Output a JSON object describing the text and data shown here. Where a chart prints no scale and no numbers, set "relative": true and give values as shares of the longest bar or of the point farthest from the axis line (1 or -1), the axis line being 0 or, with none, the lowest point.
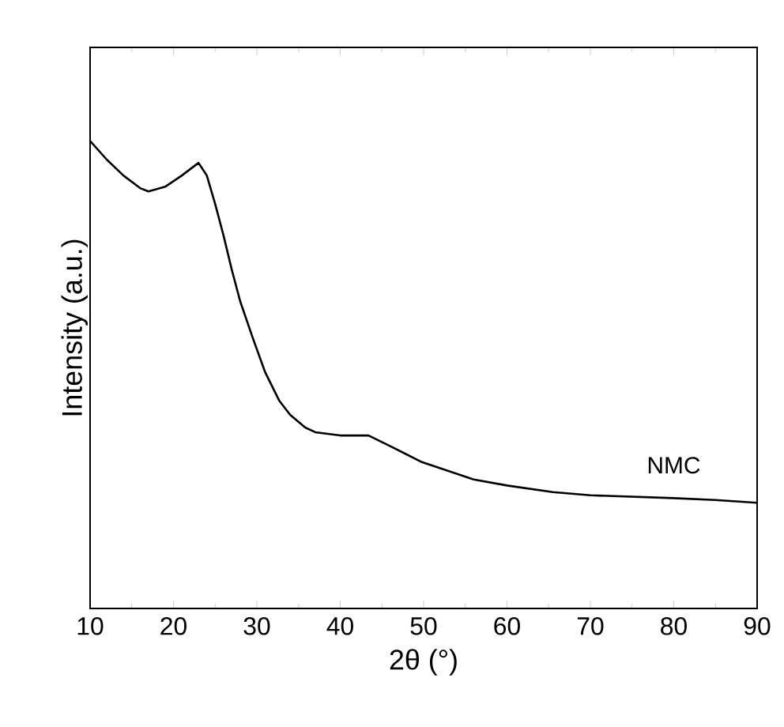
{
  "chart_data": {
    "type": "line",
    "relative": true,
    "xlabel": "2θ (°)",
    "ylabel": "Intensity (a.u.)",
    "xlim": [
      10,
      90
    ],
    "xticks": [
      10,
      20,
      30,
      40,
      50,
      60,
      70,
      80,
      90
    ],
    "marker": "none",
    "line_style": "solid",
    "series": [
      {
        "name": "NMC",
        "color": "#000000",
        "x": [
          10,
          12,
          14,
          16,
          17,
          19,
          21,
          23,
          24,
          25,
          26,
          27,
          28,
          29.5,
          31,
          32.7,
          34,
          35.8,
          37,
          40,
          43.4,
          46,
          49.8,
          56,
          60,
          65.5,
          70,
          75,
          80,
          85,
          90
        ],
        "values": [
          1.0,
          0.96,
          0.926,
          0.899,
          0.892,
          0.902,
          0.926,
          0.953,
          0.926,
          0.865,
          0.798,
          0.724,
          0.657,
          0.579,
          0.505,
          0.444,
          0.414,
          0.387,
          0.377,
          0.37,
          0.37,
          0.347,
          0.313,
          0.276,
          0.263,
          0.249,
          0.242,
          0.239,
          0.236,
          0.232,
          0.226
        ]
      }
    ]
  }
}
